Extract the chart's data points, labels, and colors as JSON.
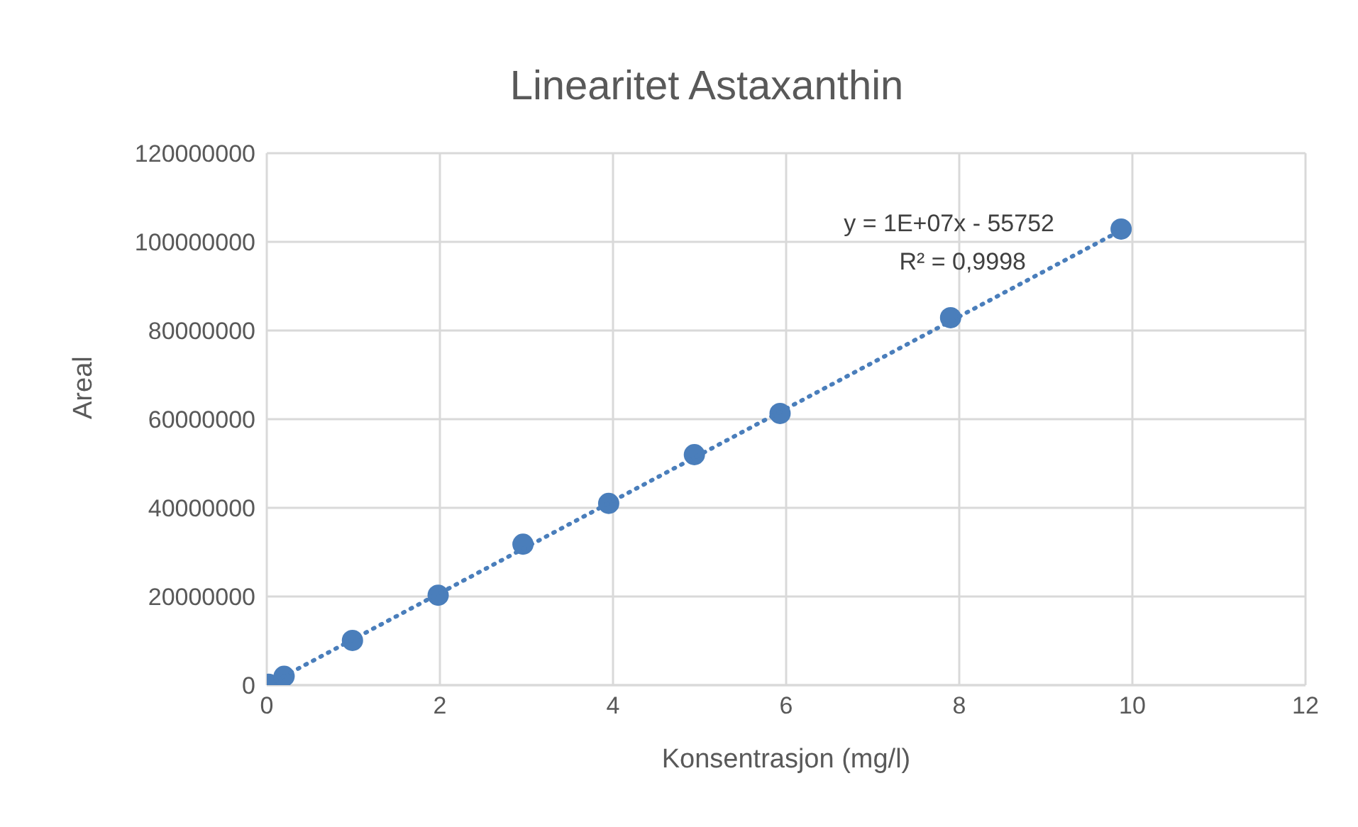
{
  "chart_data": {
    "type": "scatter",
    "title": "Linearitet Astaxanthin",
    "xlabel": "Konsentrasjon (mg/l)",
    "ylabel": "Areal",
    "series": [
      {
        "color": "#4a7ebb",
        "marker": "circle",
        "x": [
          0.02,
          0.2,
          0.99,
          1.98,
          2.96,
          3.95,
          4.94,
          5.93,
          7.9,
          9.87
        ],
        "values": [
          200000,
          2000000,
          10100000,
          20300000,
          31800000,
          41000000,
          52000000,
          61300000,
          82900000,
          102900000
        ]
      },
      {
        "type": "line",
        "color": "#4a7ebb",
        "marker": "none",
        "line_style": "dotted",
        "x": [
          0.1,
          9.87
        ],
        "values": [
          1000000,
          102600000
        ]
      }
    ],
    "xlim": [
      0,
      12
    ],
    "xticks": [
      0,
      2,
      4,
      6,
      8,
      10,
      12
    ],
    "ylim": [
      0,
      120000000
    ],
    "yticks": [
      0,
      20000000,
      40000000,
      60000000,
      80000000,
      100000000,
      120000000
    ],
    "grid": true,
    "annotations": [
      "y = 1E+07x - 55752",
      "R² = 0,9998"
    ]
  }
}
